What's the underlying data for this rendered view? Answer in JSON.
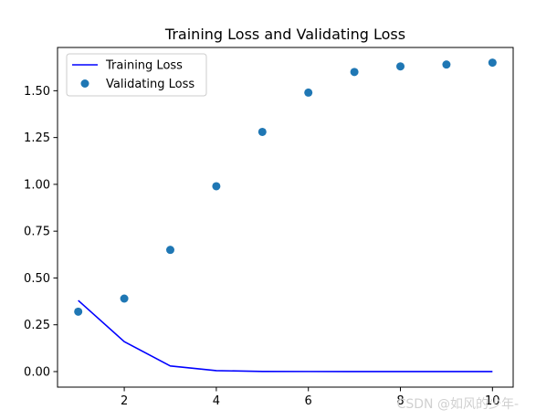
{
  "chart_data": {
    "type": "line",
    "title": "Training Loss and Validating Loss",
    "xlabel": "",
    "ylabel": "",
    "xlim": [
      0.55,
      10.45
    ],
    "ylim": [
      -0.083,
      1.731
    ],
    "xticks": [
      2,
      4,
      6,
      8,
      10
    ],
    "xtick_labels": [
      "2",
      "4",
      "6",
      "8",
      "10"
    ],
    "yticks": [
      0.0,
      0.25,
      0.5,
      0.75,
      1.0,
      1.25,
      1.5
    ],
    "ytick_labels": [
      "0.00",
      "0.25",
      "0.50",
      "0.75",
      "1.00",
      "1.25",
      "1.50"
    ],
    "grid": false,
    "legend_position": "upper left",
    "x": [
      1,
      2,
      3,
      4,
      5,
      6,
      7,
      8,
      9,
      10
    ],
    "series": [
      {
        "name": "Training Loss",
        "kind": "line",
        "color": "#0000ff",
        "values": [
          0.38,
          0.16,
          0.03,
          0.005,
          0.001,
          0.0005,
          0.0003,
          0.0002,
          0.0001,
          0.0001
        ]
      },
      {
        "name": "Validating Loss",
        "kind": "scatter",
        "color": "#1f77b4",
        "values": [
          0.32,
          0.39,
          0.65,
          0.99,
          1.28,
          1.49,
          1.6,
          1.63,
          1.64,
          1.65
        ]
      }
    ]
  },
  "watermark": "CSDN @如风的少年-"
}
